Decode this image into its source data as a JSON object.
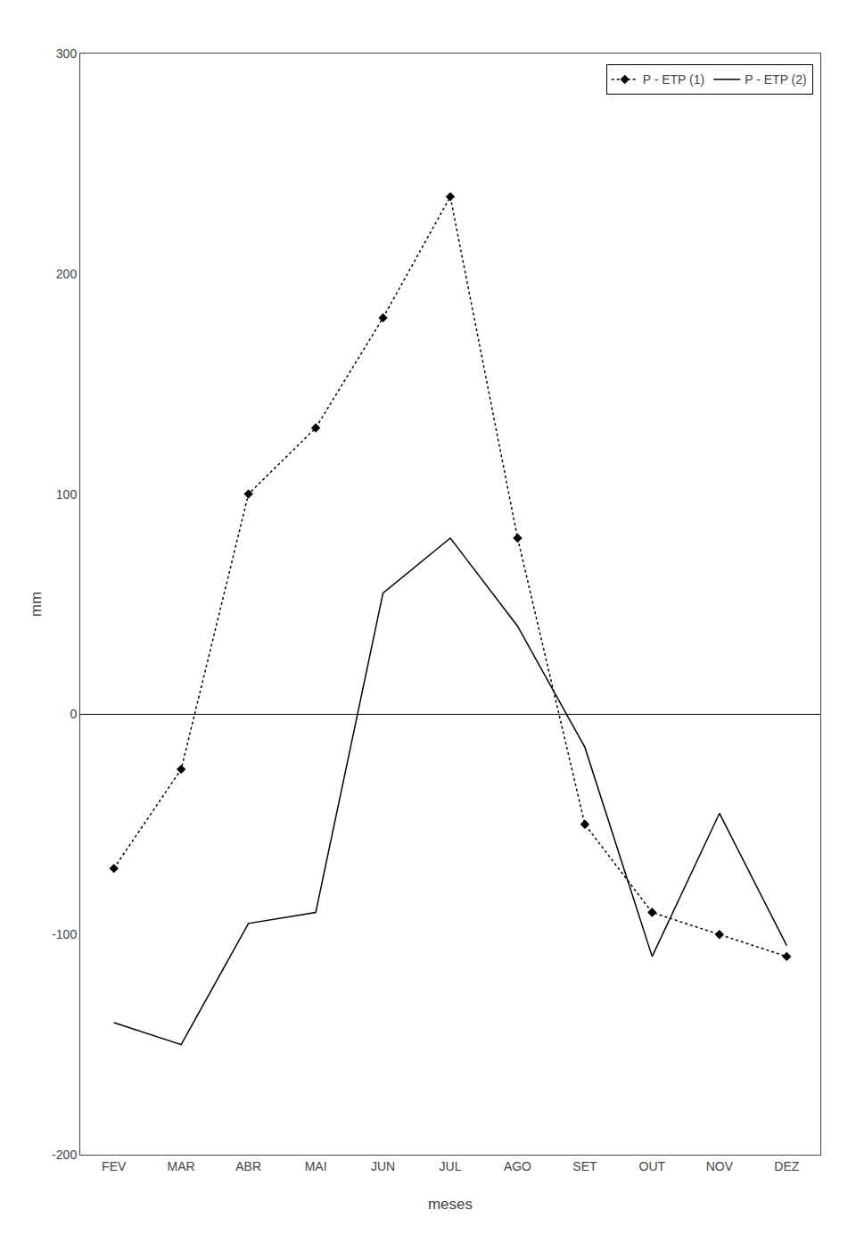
{
  "chart_data": {
    "type": "line",
    "categories": [
      "FEV",
      "MAR",
      "ABR",
      "MAI",
      "JUN",
      "JUL",
      "AGO",
      "SET",
      "OUT",
      "NOV",
      "DEZ"
    ],
    "series": [
      {
        "name": "P - ETP (1)",
        "color": "#000000",
        "line_style": "dotted",
        "marker": "diamond",
        "values": [
          -70,
          -25,
          100,
          130,
          180,
          235,
          80,
          -50,
          -90,
          -100,
          -110
        ]
      },
      {
        "name": "P - ETP (2)",
        "color": "#000000",
        "line_style": "solid",
        "marker": "none",
        "values": [
          -140,
          -150,
          -95,
          -90,
          55,
          80,
          40,
          -15,
          -110,
          -45,
          -105
        ]
      }
    ],
    "xlabel": "meses",
    "ylabel": "mm",
    "ylim": [
      -200,
      300
    ],
    "yticks": [
      -200,
      -100,
      0,
      100,
      200,
      300
    ],
    "grid": false,
    "legend": "upper right"
  }
}
